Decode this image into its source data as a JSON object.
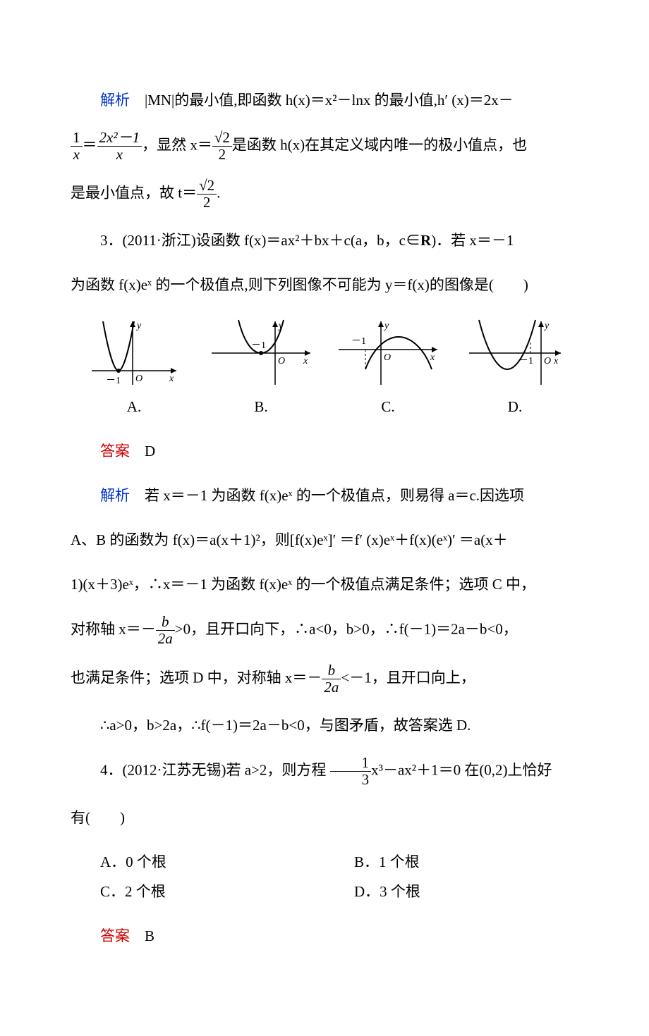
{
  "p1_label": "解析",
  "p1_text_a": "　|MN|的最小值,即函数 h(x)＝x²－lnx 的最小值,h′ (x)＝2x－",
  "p1_frac1_num": "1",
  "p1_frac1_den": "x",
  "p1_eq": "＝",
  "p1_frac2_num": "2x²－1",
  "p1_frac2_den": "x",
  "p1_text_b": "，显然 x＝",
  "p1_frac3_num": "√2",
  "p1_frac3_den": "2",
  "p1_text_c": "是函数 h(x)在其定义域内唯一的极小值点，也",
  "p1_text_d": "是最小值点，故 t＝",
  "p1_frac4_num": "√2",
  "p1_frac4_den": "2",
  "p1_text_e": ".",
  "q3_a": "3．(2011·浙江)设函数 f(x)＝ax²＋bx＋c(a，b，c∈",
  "q3_bold": "R",
  "q3_b": ")．若 x＝－1",
  "q3_c": "为函数 f(x)eˣ 的一个极值点,则下列图像不可能为 y＝f(x)的图像是(　　)",
  "figs": {
    "labels": [
      "A.",
      "B.",
      "C.",
      "D."
    ],
    "axis_color": "#000000",
    "curve_color": "#000000",
    "y_label": "y",
    "x_label": "x",
    "O_label": "O",
    "neg1": "－1",
    "A": {
      "type": "parabola_up",
      "vertex_at": "(-1,0)"
    },
    "B": {
      "type": "parabola_down",
      "vertex_left_of_y_axis": true
    },
    "C": {
      "type": "parabola_down",
      "axis_right_of_neg1": true
    },
    "D": {
      "type": "parabola_up",
      "axis_left_of_neg1": true
    }
  },
  "ans3_label": "答案",
  "ans3_val": "　D",
  "sol3_label": "解析",
  "sol3_a": "　若 x＝－1 为函数 f(x)eˣ 的一个极值点，则易得 a＝c.因选项",
  "sol3_b": "A、B 的函数为 f(x)＝a(x＋1)²，则[f(x)eˣ]′ ＝f′ (x)eˣ＋f(x)(eˣ)′ ＝a(x＋",
  "sol3_c": "1)(x＋3)eˣ，∴x＝－1 为函数 f(x)eˣ 的一个极值点满足条件；选项 C 中，",
  "sol3_d": "对称轴 x＝－",
  "sol3_frac1_num": "b",
  "sol3_frac1_den": "2a",
  "sol3_e": ">0，且开口向下，∴a<0，b>0，∴f(－1)＝2a－b<0，",
  "sol3_f": "也满足条件；选项 D 中，对称轴 x＝－",
  "sol3_frac2_num": "b",
  "sol3_frac2_den": "2a",
  "sol3_g": "<－1，且开口向上，",
  "sol3_h": "∴a>0，b>2a，∴f(－1)＝2a－b<0，与图矛盾，故答案选 D.",
  "q4_a": "4．(2012·江苏无锡)若 a>2，则方程 ",
  "q4_frac_num": "1",
  "q4_frac_den": "3",
  "q4_b": "x³－ax²＋1＝0 在(0,2)上恰好",
  "q4_c": "有(　　)",
  "q4_opts": {
    "A": "A．0 个根",
    "B": "B．1 个根",
    "C": "C．2 个根",
    "D": "D．3 个根"
  },
  "ans4_label": "答案",
  "ans4_val": "　B",
  "colors": {
    "blue": "#0033cc",
    "red": "#cc0000",
    "text": "#000000",
    "bg": "#ffffff"
  },
  "fonts": {
    "body_size_pt": 16,
    "line_height": 2.0
  }
}
